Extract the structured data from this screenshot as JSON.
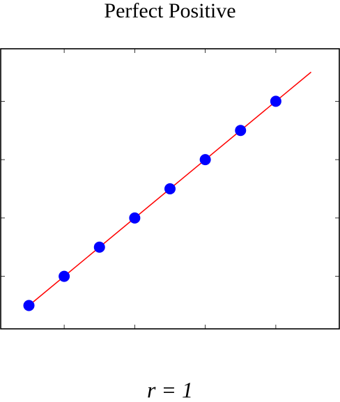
{
  "chart_data": {
    "type": "scatter",
    "title": "Perfect Positive",
    "x": [
      1,
      2,
      3,
      4,
      5,
      6,
      7,
      8
    ],
    "series": [
      {
        "color": "#0000ff",
        "values": [
          1,
          2,
          3,
          4,
          5,
          6,
          7,
          8
        ]
      }
    ],
    "fit_line": {
      "x": [
        1,
        9
      ],
      "y": [
        1,
        9
      ],
      "color": "#ff0000"
    },
    "xlim": [
      0.2,
      9.8
    ],
    "ylim": [
      0.2,
      9.8
    ],
    "xticks": [
      2,
      4,
      6,
      8
    ],
    "yticks": [
      2,
      4,
      6,
      8
    ],
    "tick_labels": false,
    "annotation": "r = 1"
  }
}
